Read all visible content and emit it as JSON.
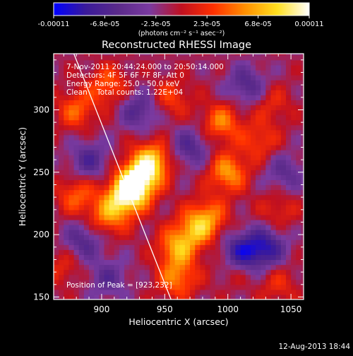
{
  "chart_data": {
    "type": "heatmap",
    "title": "Reconstructed RHESSI Image",
    "xlabel": "Heliocentric X (arcsec)",
    "ylabel": "Heliocentric Y (arcsec)",
    "xlim": [
      862,
      1060
    ],
    "ylim": [
      148,
      345
    ],
    "x_ticks": [
      900,
      950,
      1000,
      1050
    ],
    "y_ticks": [
      150,
      200,
      250,
      300
    ],
    "colorbar": {
      "ticks": [
        "-0.00011",
        "-6.8e-05",
        "-2.3e-05",
        "2.3e-05",
        "6.8e-05",
        "0.00011"
      ],
      "values": [
        -0.00011,
        -6.8e-05,
        -2.3e-05,
        2.3e-05,
        6.8e-05,
        0.00011
      ],
      "unit_label": "(photons cm⁻² s⁻¹ asec⁻²)",
      "colormap": [
        "#0000ff",
        "#3a1a9a",
        "#5a2a8a",
        "#7a3aa0",
        "#c01020",
        "#ff3000",
        "#ff9000",
        "#ffe020",
        "#ffffff"
      ]
    },
    "annotations": [
      "7-Nov-2011 20:44:24.000 to 20:50:14.000",
      "Detectors: 4F 5F 6F 7F 8F, Att 0",
      "Energy Range: 25.0 - 50.0 keV",
      "Clean    Total counts: 1.22E+04"
    ],
    "peak_label": "Position of Peak = [923,232]",
    "peak_position": [
      923,
      232
    ],
    "limb_line": [
      [
        878,
        345
      ],
      [
        955,
        148
      ]
    ],
    "blobs": [
      {
        "x": 930,
        "y": 245,
        "w": 0.0001
      },
      {
        "x": 920,
        "y": 232,
        "w": 0.00011
      },
      {
        "x": 940,
        "y": 260,
        "w": 8e-05
      },
      {
        "x": 905,
        "y": 215,
        "w": 6e-05
      },
      {
        "x": 880,
        "y": 232,
        "w": 5e-05
      },
      {
        "x": 880,
        "y": 300,
        "w": 5e-05
      },
      {
        "x": 905,
        "y": 320,
        "w": 5e-05
      },
      {
        "x": 960,
        "y": 190,
        "w": 7e-05
      },
      {
        "x": 975,
        "y": 205,
        "w": 6e-05
      },
      {
        "x": 960,
        "y": 165,
        "w": 6e-05
      },
      {
        "x": 1000,
        "y": 250,
        "w": 7e-05
      },
      {
        "x": 995,
        "y": 290,
        "w": 6e-05
      },
      {
        "x": 1025,
        "y": 275,
        "w": 4e-05
      },
      {
        "x": 1035,
        "y": 305,
        "w": 3e-05
      },
      {
        "x": 985,
        "y": 215,
        "w": 5e-05
      },
      {
        "x": 1005,
        "y": 175,
        "w": 3e-05
      },
      {
        "x": 1040,
        "y": 220,
        "w": 3e-05
      },
      {
        "x": 870,
        "y": 175,
        "w": 3e-05
      },
      {
        "x": 1040,
        "y": 160,
        "w": 3e-05
      },
      {
        "x": 955,
        "y": 310,
        "w": 4e-05
      },
      {
        "x": 970,
        "y": 270,
        "w": -5e-05
      },
      {
        "x": 890,
        "y": 260,
        "w": -5e-05
      },
      {
        "x": 1010,
        "y": 185,
        "w": -8e-05
      },
      {
        "x": 1030,
        "y": 190,
        "w": -7e-05
      },
      {
        "x": 930,
        "y": 300,
        "w": -5e-05
      },
      {
        "x": 1015,
        "y": 320,
        "w": -5e-05
      },
      {
        "x": 885,
        "y": 195,
        "w": -5e-05
      },
      {
        "x": 1045,
        "y": 250,
        "w": -4e-05
      },
      {
        "x": 905,
        "y": 165,
        "w": -4e-05
      }
    ]
  },
  "footer": {
    "timestamp": "12-Aug-2013 18:44"
  }
}
